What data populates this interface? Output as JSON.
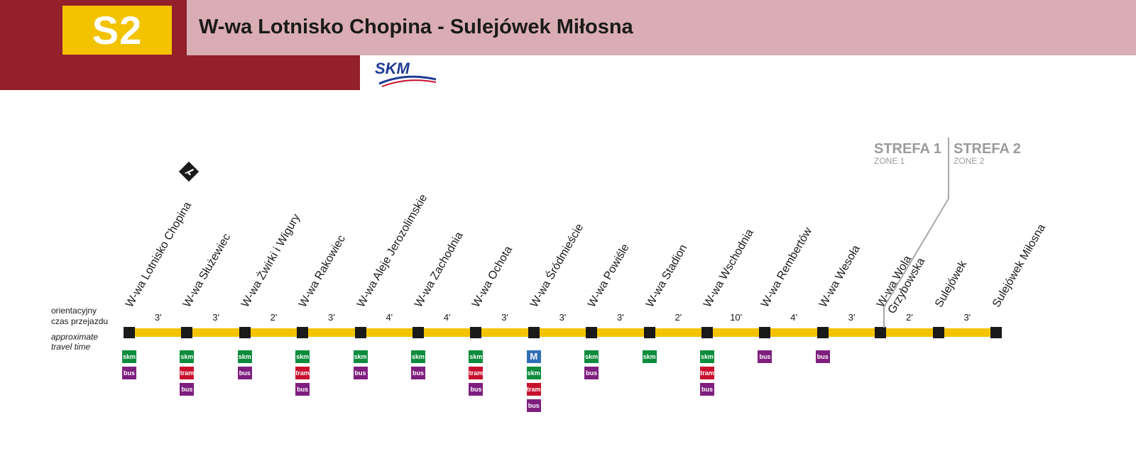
{
  "header": {
    "line_code": "S2",
    "title": "W-wa Lotnisko Chopina - Sulejówek Miłosna",
    "brand_color": "#93202b",
    "title_bg": "#d9adb3",
    "badge_color": "#f4c300",
    "operator": "SKM"
  },
  "labels": {
    "time_pl_1": "orientacyjny",
    "time_pl_2": "czas przejazdu",
    "time_en_1": "approximate",
    "time_en_2": "travel time"
  },
  "zones": {
    "zone1": "STREFA 1",
    "zone1_en": "ZONE 1",
    "zone2": "STREFA 2",
    "zone2_en": "ZONE 2"
  },
  "stations": [
    {
      "name": "W-wa Lotnisko Chopina",
      "connections": [
        "skm",
        "bus"
      ],
      "airport": true
    },
    {
      "name": "W-wa Służewiec",
      "connections": [
        "skm",
        "tram",
        "bus"
      ]
    },
    {
      "name": "W-wa Żwirki i Wigury",
      "connections": [
        "skm",
        "bus"
      ]
    },
    {
      "name": "W-wa Rakowiec",
      "connections": [
        "skm",
        "tram",
        "bus"
      ]
    },
    {
      "name": "W-wa Aleje Jerozolimskie",
      "connections": [
        "skm",
        "bus"
      ]
    },
    {
      "name": "W-wa Zachodnia",
      "connections": [
        "skm",
        "bus"
      ]
    },
    {
      "name": "W-wa Ochota",
      "connections": [
        "skm",
        "tram",
        "bus"
      ]
    },
    {
      "name": "W-wa Śródmieście",
      "connections": [
        "M",
        "skm",
        "tram",
        "bus"
      ]
    },
    {
      "name": "W-wa Powiśle",
      "connections": [
        "skm",
        "bus"
      ]
    },
    {
      "name": "W-wa Stadion",
      "connections": [
        "skm"
      ]
    },
    {
      "name": "W-wa Wschodnia",
      "connections": [
        "skm",
        "tram",
        "bus"
      ]
    },
    {
      "name": "W-wa Rembertów",
      "connections": [
        "bus"
      ]
    },
    {
      "name": "W-wa Wesoła",
      "connections": [
        "bus"
      ]
    },
    {
      "name": "W-wa Wola\nGrzybowska",
      "connections": []
    },
    {
      "name": "Sulejówek",
      "connections": []
    },
    {
      "name": "Sulejówek Miłosna",
      "connections": []
    }
  ],
  "travel_times": [
    "3'",
    "3'",
    "2'",
    "3'",
    "4'",
    "4'",
    "3'",
    "3'",
    "3'",
    "2'",
    "10'",
    "4'",
    "3'",
    "2'",
    "3'"
  ]
}
